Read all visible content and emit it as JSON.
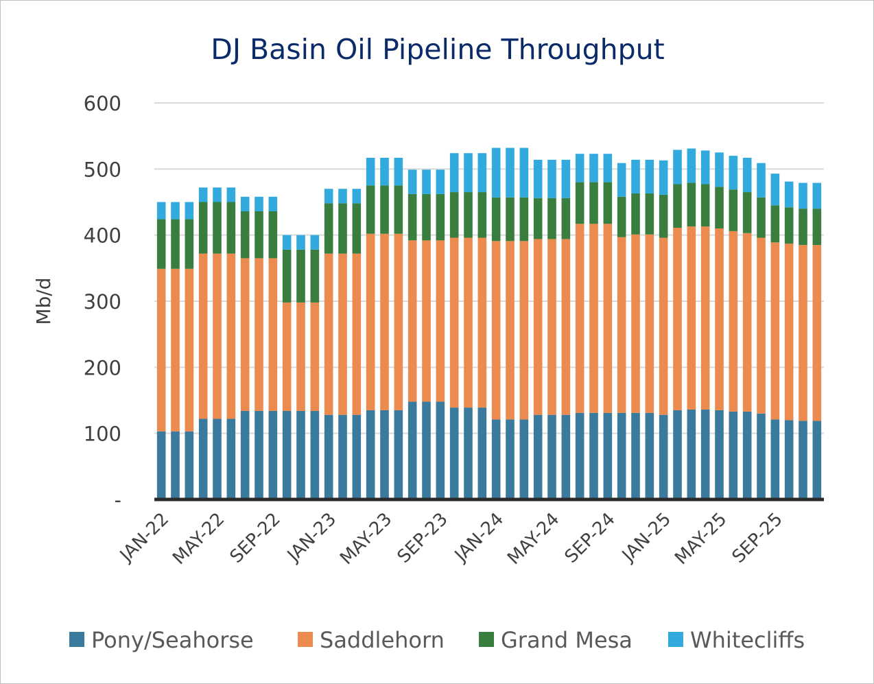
{
  "chart_data": {
    "type": "bar",
    "stacked": true,
    "title": "DJ Basin Oil Pipeline Throughput",
    "xlabel": "",
    "ylabel": "Mb/d",
    "ylim": [
      0,
      600
    ],
    "yticks": [
      0,
      100,
      200,
      300,
      400,
      500,
      600
    ],
    "ytick_labels": [
      "-",
      "100",
      "200",
      "300",
      "400",
      "500",
      "600"
    ],
    "x_tick_labels": [
      "JAN-22",
      "MAY-22",
      "SEP-22",
      "JAN-23",
      "MAY-23",
      "SEP-23",
      "JAN-24",
      "MAY-24",
      "SEP-24",
      "JAN-25",
      "MAY-25",
      "SEP-25"
    ],
    "grid": true,
    "legend_position": "bottom",
    "categories": [
      "JAN-22",
      "FEB-22",
      "MAR-22",
      "APR-22",
      "MAY-22",
      "JUN-22",
      "JUL-22",
      "AUG-22",
      "SEP-22",
      "OCT-22",
      "NOV-22",
      "DEC-22",
      "JAN-23",
      "FEB-23",
      "MAR-23",
      "APR-23",
      "MAY-23",
      "JUN-23",
      "JUL-23",
      "AUG-23",
      "SEP-23",
      "OCT-23",
      "NOV-23",
      "DEC-23",
      "JAN-24",
      "FEB-24",
      "MAR-24",
      "APR-24",
      "MAY-24",
      "JUN-24",
      "JUL-24",
      "AUG-24",
      "SEP-24",
      "OCT-24",
      "NOV-24",
      "DEC-24",
      "JAN-25",
      "FEB-25",
      "MAR-25",
      "APR-25",
      "MAY-25",
      "JUN-25",
      "JUL-25",
      "AUG-25",
      "SEP-25",
      "OCT-25",
      "NOV-25",
      "DEC-25"
    ],
    "series": [
      {
        "name": "Pony/Seahorse",
        "color": "#3a7a9c",
        "values": [
          103,
          103,
          103,
          122,
          122,
          122,
          134,
          134,
          134,
          134,
          134,
          134,
          128,
          128,
          128,
          135,
          135,
          135,
          148,
          148,
          148,
          139,
          139,
          139,
          121,
          121,
          121,
          128,
          128,
          128,
          131,
          131,
          131,
          131,
          131,
          131,
          128,
          135,
          136,
          136,
          135,
          133,
          133,
          130,
          121,
          120,
          119,
          119
        ]
      },
      {
        "name": "Saddlehorn",
        "color": "#ec8b4f",
        "values": [
          246,
          246,
          246,
          250,
          250,
          250,
          231,
          231,
          231,
          164,
          164,
          164,
          244,
          244,
          244,
          267,
          267,
          267,
          244,
          244,
          244,
          257,
          257,
          257,
          270,
          270,
          270,
          266,
          266,
          266,
          286,
          286,
          286,
          266,
          270,
          270,
          268,
          276,
          277,
          277,
          275,
          273,
          270,
          266,
          268,
          267,
          266,
          266
        ]
      },
      {
        "name": "Grand Mesa",
        "color": "#3a7e3f",
        "values": [
          75,
          75,
          75,
          78,
          78,
          78,
          71,
          71,
          71,
          80,
          80,
          80,
          76,
          76,
          76,
          73,
          73,
          73,
          70,
          70,
          70,
          69,
          69,
          69,
          66,
          66,
          66,
          62,
          62,
          62,
          63,
          63,
          63,
          61,
          62,
          62,
          65,
          66,
          66,
          64,
          63,
          63,
          62,
          61,
          56,
          55,
          55,
          55
        ]
      },
      {
        "name": "Whitecliffs",
        "color": "#33aadd",
        "values": [
          26,
          26,
          26,
          22,
          22,
          22,
          22,
          22,
          22,
          22,
          22,
          22,
          22,
          22,
          22,
          42,
          42,
          42,
          37,
          37,
          37,
          59,
          59,
          59,
          75,
          75,
          75,
          58,
          58,
          58,
          43,
          43,
          43,
          51,
          51,
          51,
          52,
          52,
          52,
          51,
          52,
          51,
          52,
          52,
          48,
          39,
          39,
          39
        ]
      }
    ]
  }
}
